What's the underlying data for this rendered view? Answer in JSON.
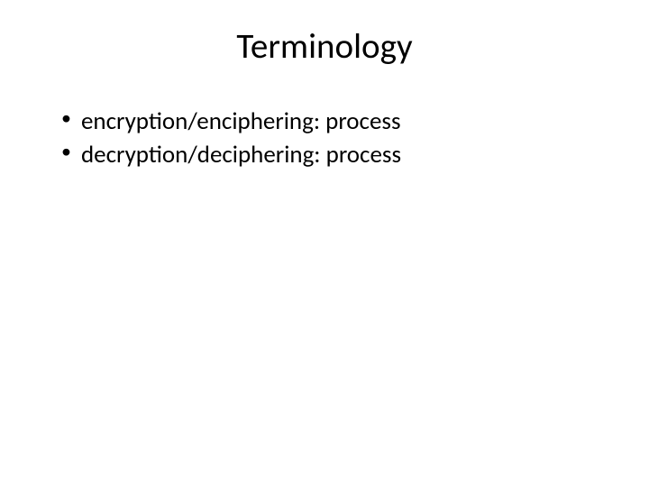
{
  "slide": {
    "title": "Terminology",
    "title_fontsize": 39,
    "title_color": "#000000",
    "bullets": [
      "encryption/enciphering:  process",
      "decryption/deciphering:  process"
    ],
    "bullet_fontsize": 27,
    "bullet_color": "#000000",
    "background_color": "#ffffff"
  }
}
